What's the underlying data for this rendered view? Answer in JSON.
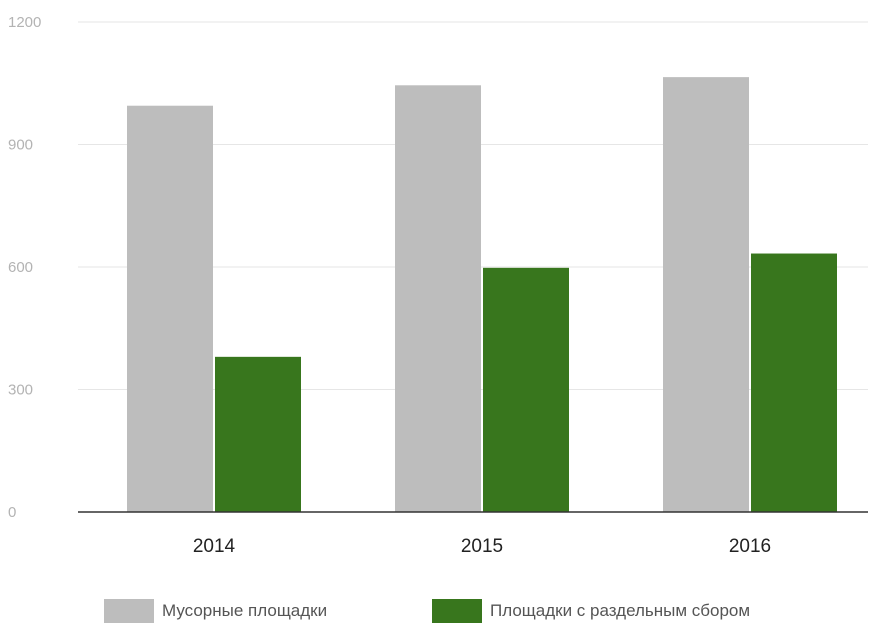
{
  "chart_data": {
    "type": "bar",
    "title": "",
    "xlabel": "",
    "ylabel": "",
    "categories": [
      "2014",
      "2015",
      "2016"
    ],
    "series": [
      {
        "name": "Мусорные площадки",
        "color": "#bdbdbd",
        "values": [
          995,
          1045,
          1065
        ]
      },
      {
        "name": "Площадки с раздельным сбором",
        "color": "#38761d",
        "values": [
          380,
          598,
          633
        ]
      }
    ],
    "ylim": [
      0,
      1200
    ],
    "yticks": [
      0,
      300,
      600,
      900,
      1200
    ],
    "grid": true,
    "legend_position": "bottom"
  }
}
